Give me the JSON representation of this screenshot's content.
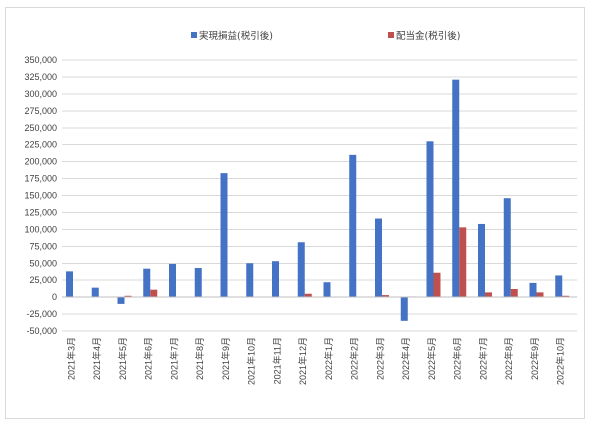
{
  "chart_data": {
    "type": "bar",
    "title": "",
    "xlabel": "",
    "ylabel": "",
    "categories": [
      "2021年3月",
      "2021年4月",
      "2021年5月",
      "2021年6月",
      "2021年7月",
      "2021年8月",
      "2021年9月",
      "2021年10月",
      "2021年11月",
      "2021年12月",
      "2022年1月",
      "2022年2月",
      "2022年3月",
      "2022年4月",
      "2022年5月",
      "2022年6月",
      "2022年7月",
      "2022年8月",
      "2022年9月",
      "2022年10月"
    ],
    "series": [
      {
        "name": "実現損益(税引後)",
        "color": "#4472c4",
        "values": [
          38000,
          14000,
          -10000,
          42000,
          49000,
          43000,
          183000,
          50000,
          53000,
          81000,
          22000,
          210000,
          116000,
          -35000,
          230000,
          321000,
          108000,
          146000,
          21000,
          32000
        ]
      },
      {
        "name": "配当金(税引後)",
        "color": "#c0504d",
        "values": [
          0,
          0,
          2000,
          11000,
          0,
          0,
          0,
          0,
          0,
          5000,
          0,
          0,
          3000,
          1000,
          36000,
          103000,
          7000,
          12000,
          7000,
          2000
        ]
      }
    ],
    "ylim": [
      -50000,
      350000
    ],
    "ytick_step": 25000,
    "ytick_labels": [
      "-50,000",
      "-25,000",
      "0",
      "25,000",
      "50,000",
      "75,000",
      "100,000",
      "125,000",
      "150,000",
      "175,000",
      "200,000",
      "225,000",
      "250,000",
      "275,000",
      "300,000",
      "325,000",
      "350,000"
    ],
    "grid": true,
    "legend_position": "top-center"
  }
}
